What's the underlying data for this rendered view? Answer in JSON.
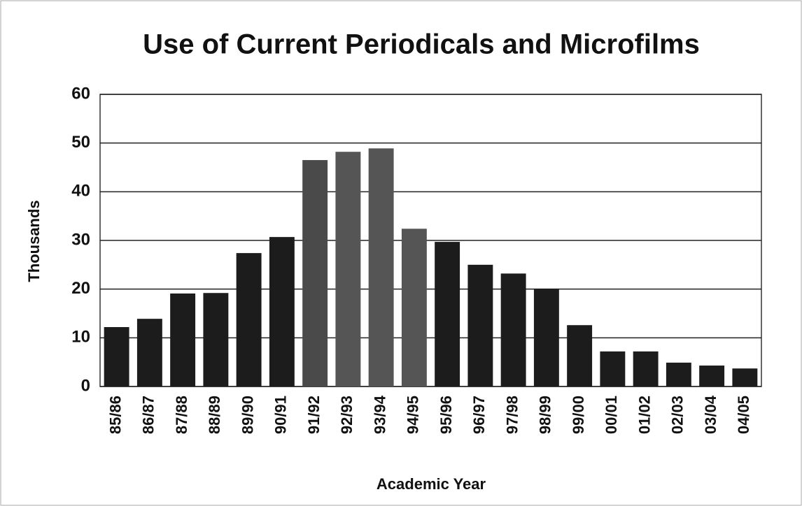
{
  "chart_data": {
    "type": "bar",
    "title": "Use of Current Periodicals and Microfilms",
    "x_label": "Academic Year",
    "y_label": "Thousands",
    "categories": [
      "85/86",
      "86/87",
      "87/88",
      "88/89",
      "89/90",
      "90/91",
      "91/92",
      "92/93",
      "93/94",
      "94/95",
      "95/96",
      "96/97",
      "97/98",
      "98/99",
      "99/00",
      "00/01",
      "01/02",
      "02/03",
      "03/04",
      "04/05"
    ],
    "values": [
      12.2,
      13.9,
      19.1,
      19.2,
      27.4,
      30.7,
      46.5,
      48.2,
      48.9,
      32.4,
      29.7,
      25,
      23.2,
      20.1,
      12.6,
      7.2,
      7.2,
      4.9,
      4.3,
      3.7
    ],
    "colors": [
      "#1c1c1c",
      "#1c1c1c",
      "#1c1c1c",
      "#1c1c1c",
      "#1c1c1c",
      "#1c1c1c",
      "#4a4a4a",
      "#555555",
      "#555555",
      "#555555",
      "#1c1c1c",
      "#1c1c1c",
      "#1c1c1c",
      "#1c1c1c",
      "#1c1c1c",
      "#1c1c1c",
      "#1c1c1c",
      "#1c1c1c",
      "#1c1c1c",
      "#1c1c1c"
    ],
    "ylim": [
      0,
      60
    ],
    "yticks": [
      0,
      10,
      20,
      30,
      40,
      50,
      60
    ],
    "grid": true
  }
}
